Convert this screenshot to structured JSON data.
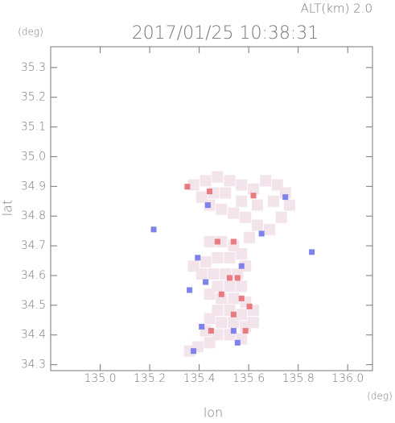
{
  "chart_data": {
    "type": "scatter",
    "title": "2017/01/25 10:38:31",
    "annotation": "ALT(km)  2.0",
    "x_label": "lon",
    "y_label": "lat",
    "x_unit": "(deg)",
    "y_unit": "(deg)",
    "xlim": [
      134.8,
      136.1
    ],
    "xticks": [
      {
        "value": 135,
        "label": "135.0"
      },
      135.2,
      135.4,
      135.6,
      135.8,
      {
        "value": 136,
        "label": "136.0"
      }
    ],
    "ylim": [
      34.28,
      35.37
    ],
    "yticks": [
      34.3,
      34.4,
      34.5,
      34.6,
      34.7,
      34.8,
      34.9,
      {
        "value": 35,
        "label": "35.0"
      },
      35.1,
      35.2,
      35.3
    ],
    "series": [
      {
        "color": "#f2e4ea",
        "size": 14,
        "x": [
          135.377,
          135.426,
          135.474,
          135.523,
          135.571,
          135.619,
          135.668,
          135.716,
          135.748,
          135.765,
          135.732,
          135.684,
          135.635,
          135.587,
          135.539,
          135.49,
          135.442,
          135.41,
          135.571,
          135.635,
          135.7,
          135.506,
          135.458,
          135.603,
          135.442,
          135.49,
          135.539,
          135.571,
          135.523,
          135.474,
          135.426,
          135.377,
          135.41,
          135.458,
          135.506,
          135.555,
          135.587,
          135.571,
          135.523,
          135.474,
          135.442,
          135.49,
          135.539,
          135.587,
          135.619,
          135.571,
          135.523,
          135.474,
          135.442,
          135.49,
          135.539,
          135.587,
          135.619,
          135.426,
          135.474,
          135.523,
          135.571,
          135.442,
          135.394,
          135.361
        ],
        "values": [
          34.905,
          34.919,
          34.932,
          34.919,
          34.905,
          34.891,
          34.919,
          34.905,
          34.878,
          34.837,
          34.796,
          34.755,
          34.769,
          34.796,
          34.81,
          34.823,
          34.837,
          34.864,
          34.85,
          34.837,
          34.85,
          34.878,
          34.878,
          34.728,
          34.714,
          34.714,
          34.701,
          34.673,
          34.66,
          34.66,
          34.646,
          34.632,
          34.605,
          34.605,
          34.605,
          34.605,
          34.632,
          34.564,
          34.564,
          34.564,
          34.537,
          34.523,
          34.523,
          34.51,
          34.483,
          34.469,
          34.483,
          34.483,
          34.455,
          34.442,
          34.442,
          34.428,
          34.442,
          34.414,
          34.401,
          34.401,
          34.387,
          34.374,
          34.36,
          34.346
        ]
      },
      {
        "color": "#e87a80",
        "size": 7,
        "x": [
          135.352,
          135.442,
          135.619,
          135.539,
          135.474,
          135.523,
          135.555,
          135.49,
          135.571,
          135.603,
          135.539,
          135.448,
          135.587
        ],
        "values": [
          34.899,
          34.883,
          34.869,
          34.714,
          34.714,
          34.592,
          34.592,
          34.537,
          34.523,
          34.496,
          34.469,
          34.414,
          34.414
        ]
      },
      {
        "color": "#7f82ea",
        "size": 7,
        "x": [
          135.216,
          135.748,
          135.435,
          135.652,
          135.855,
          135.394,
          135.361,
          135.426,
          135.539,
          135.41,
          135.555,
          135.377,
          135.571
        ],
        "values": [
          34.755,
          34.864,
          34.837,
          34.741,
          34.679,
          34.66,
          34.551,
          34.578,
          34.414,
          34.428,
          34.374,
          34.346,
          34.632
        ]
      }
    ]
  }
}
